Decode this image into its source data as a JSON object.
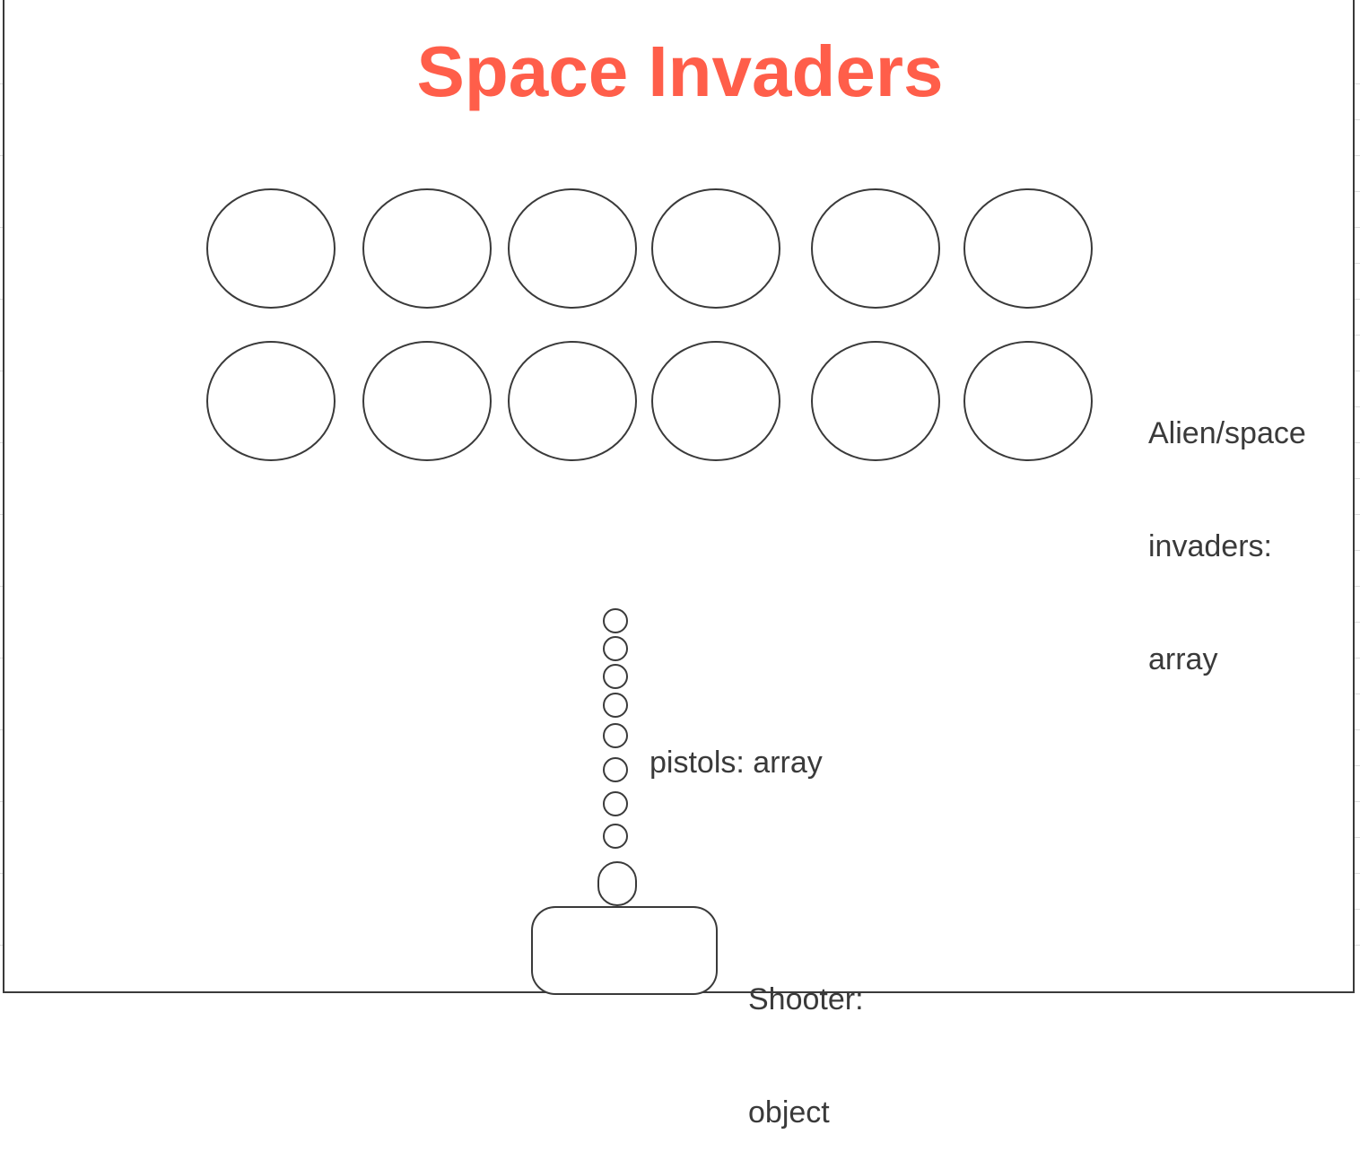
{
  "title": "Space Invaders",
  "aliens": {
    "label_lines": [
      "Alien/space",
      "invaders:",
      "array"
    ],
    "rows": 2,
    "columns": 6
  },
  "pistols": {
    "label": "pistols: array",
    "count": 8
  },
  "shooter": {
    "label_lines": [
      "Shooter:",
      "object"
    ]
  },
  "colors": {
    "title": "#ff5e4a",
    "stroke": "#3a3a3a",
    "text": "#3a3a3a"
  }
}
